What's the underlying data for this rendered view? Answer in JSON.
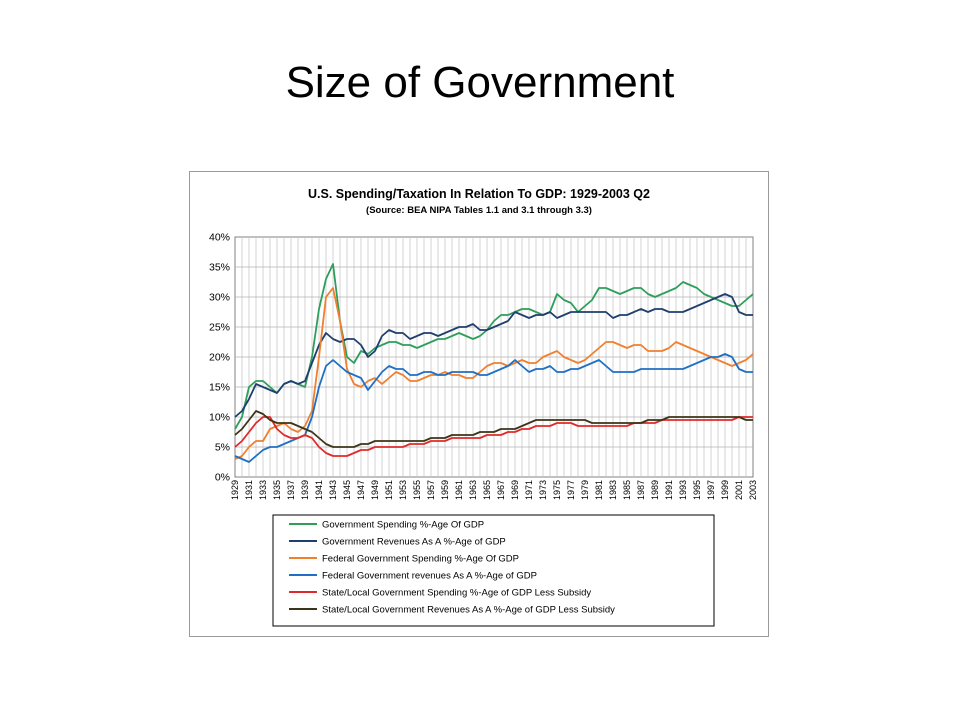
{
  "slide": {
    "title": "Size of Government"
  },
  "chart_data": {
    "type": "line",
    "title": "U.S. Spending/Taxation In Relation To GDP:  1929-2003 Q2",
    "subtitle": "(Source:  BEA NIPA Tables 1.1 and 3.1 through 3.3)",
    "xlabel": "",
    "ylabel": "",
    "ylim": [
      0,
      40
    ],
    "ytick_labels": [
      "0%",
      "5%",
      "10%",
      "15%",
      "20%",
      "25%",
      "30%",
      "35%",
      "40%"
    ],
    "xtick_labels": [
      "1929",
      "1931",
      "1933",
      "1935",
      "1937",
      "1939",
      "1941",
      "1943",
      "1945",
      "1947",
      "1949",
      "1951",
      "1953",
      "1955",
      "1957",
      "1959",
      "1961",
      "1963",
      "1965",
      "1967",
      "1969",
      "1971",
      "1973",
      "1975",
      "1977",
      "1979",
      "1981",
      "1983",
      "1985",
      "1987",
      "1989",
      "1991",
      "1993",
      "1995",
      "1997",
      "1999",
      "2001",
      "2003"
    ],
    "x": [
      1929,
      1930,
      1931,
      1932,
      1933,
      1934,
      1935,
      1936,
      1937,
      1938,
      1939,
      1940,
      1941,
      1942,
      1943,
      1944,
      1945,
      1946,
      1947,
      1948,
      1949,
      1950,
      1951,
      1952,
      1953,
      1954,
      1955,
      1956,
      1957,
      1958,
      1959,
      1960,
      1961,
      1962,
      1963,
      1964,
      1965,
      1966,
      1967,
      1968,
      1969,
      1970,
      1971,
      1972,
      1973,
      1974,
      1975,
      1976,
      1977,
      1978,
      1979,
      1980,
      1981,
      1982,
      1983,
      1984,
      1985,
      1986,
      1987,
      1988,
      1989,
      1990,
      1991,
      1992,
      1993,
      1994,
      1995,
      1996,
      1997,
      1998,
      1999,
      2000,
      2001,
      2002,
      2003
    ],
    "grid": true,
    "legend_position": "bottom",
    "series": [
      {
        "name": "Government Spending %-Age Of GDP",
        "color": "#2e9e5b",
        "values": [
          8,
          10,
          15,
          16,
          16,
          15,
          14,
          15.5,
          16,
          15.5,
          15,
          20,
          28,
          33,
          35.5,
          26,
          20,
          19,
          21,
          20.5,
          21.5,
          22,
          22.5,
          22.5,
          22,
          22,
          21.5,
          22,
          22.5,
          23,
          23,
          23.5,
          24,
          23.5,
          23,
          23.5,
          24.5,
          26,
          27,
          27,
          27.5,
          28,
          28,
          27.5,
          27,
          27.5,
          30.5,
          29.5,
          29,
          27.5,
          28.5,
          29.5,
          31.5,
          31.5,
          31,
          30.5,
          31,
          31.5,
          31.5,
          30.5,
          30,
          30.5,
          31,
          31.5,
          32.5,
          32,
          31.5,
          30.5,
          30,
          29.5,
          29,
          28.5,
          28.5,
          29.5,
          30.5
        ]
      },
      {
        "name": "Government Revenues As A %-Age of GDP",
        "color": "#1f3f6e",
        "values": [
          10,
          11,
          13,
          15.5,
          15,
          14.5,
          14,
          15.5,
          16,
          15.5,
          16,
          19,
          22,
          24,
          23,
          22.5,
          23,
          23,
          22,
          20,
          21,
          23.5,
          24.5,
          24,
          24,
          23,
          23.5,
          24,
          24,
          23.5,
          24,
          24.5,
          25,
          25,
          25.5,
          24.5,
          24.5,
          25,
          25.5,
          26,
          27.5,
          27,
          26.5,
          27,
          27,
          27.5,
          26.5,
          27,
          27.5,
          27.5,
          27.5,
          27.5,
          27.5,
          27.5,
          26.5,
          27,
          27,
          27.5,
          28,
          27.5,
          28,
          28,
          27.5,
          27.5,
          27.5,
          28,
          28.5,
          29,
          29.5,
          30,
          30.5,
          30,
          27.5,
          27,
          27
        ]
      },
      {
        "name": "Federal Government Spending %-Age Of GDP",
        "color": "#f07f2e",
        "values": [
          3,
          3.5,
          5,
          6,
          6,
          8,
          8.5,
          9,
          8,
          7.5,
          8.5,
          11,
          20,
          30,
          31.5,
          26,
          18,
          15.5,
          15,
          16,
          16.5,
          15.5,
          16.5,
          17.5,
          17,
          16,
          16,
          16.5,
          17,
          17,
          17.5,
          17,
          17,
          16.5,
          16.5,
          17.5,
          18.5,
          19,
          19,
          18.5,
          19,
          19.5,
          19,
          19,
          20,
          20.5,
          21,
          20,
          19.5,
          19,
          19.5,
          20.5,
          21.5,
          22.5,
          22.5,
          22,
          21.5,
          22,
          22,
          21,
          21,
          21,
          21.5,
          22.5,
          22,
          21.5,
          21,
          20.5,
          20,
          19.5,
          19,
          18.5,
          19,
          19.5,
          20.5
        ]
      },
      {
        "name": "Federal Government revenues As A %-Age of GDP",
        "color": "#1f6fc4",
        "values": [
          3.5,
          3,
          2.5,
          3.5,
          4.5,
          5,
          5,
          5.5,
          6,
          6.5,
          7,
          10,
          15,
          18.5,
          19.5,
          18.5,
          17.5,
          17,
          16.5,
          14.5,
          16,
          17.5,
          18.5,
          18,
          18,
          17,
          17,
          17.5,
          17.5,
          17,
          17,
          17.5,
          17.5,
          17.5,
          17.5,
          17,
          17,
          17.5,
          18,
          18.5,
          19.5,
          18.5,
          17.5,
          18,
          18,
          18.5,
          17.5,
          17.5,
          18,
          18,
          18.5,
          19,
          19.5,
          18.5,
          17.5,
          17.5,
          17.5,
          17.5,
          18,
          18,
          18,
          18,
          18,
          18,
          18,
          18.5,
          19,
          19.5,
          20,
          20,
          20.5,
          20,
          18,
          17.5,
          17.5
        ]
      },
      {
        "name": "State/Local Government Spending %-Age of GDP Less Subsidy",
        "color": "#e02a2a",
        "values": [
          5,
          6,
          7.5,
          9,
          10,
          10,
          8,
          7,
          6.5,
          6.5,
          7,
          6.5,
          5,
          4,
          3.5,
          3.5,
          3.5,
          4,
          4.5,
          4.5,
          5,
          5,
          5,
          5,
          5,
          5.5,
          5.5,
          5.5,
          6,
          6,
          6,
          6.5,
          6.5,
          6.5,
          6.5,
          6.5,
          7,
          7,
          7,
          7.5,
          7.5,
          8,
          8,
          8.5,
          8.5,
          8.5,
          9,
          9,
          9,
          8.5,
          8.5,
          8.5,
          8.5,
          8.5,
          8.5,
          8.5,
          8.5,
          9,
          9,
          9,
          9,
          9.5,
          9.5,
          9.5,
          9.5,
          9.5,
          9.5,
          9.5,
          9.5,
          9.5,
          9.5,
          9.5,
          10,
          10,
          10
        ]
      },
      {
        "name": "State/Local Government Revenues As A %-Age of GDP Less Subsidy",
        "color": "#3d3417",
        "values": [
          7,
          8,
          9.5,
          11,
          10.5,
          9.5,
          9,
          9,
          9,
          8.5,
          8,
          7.5,
          6.5,
          5.5,
          5,
          5,
          5,
          5,
          5.5,
          5.5,
          6,
          6,
          6,
          6,
          6,
          6,
          6,
          6,
          6.5,
          6.5,
          6.5,
          7,
          7,
          7,
          7,
          7.5,
          7.5,
          7.5,
          8,
          8,
          8,
          8.5,
          9,
          9.5,
          9.5,
          9.5,
          9.5,
          9.5,
          9.5,
          9.5,
          9.5,
          9,
          9,
          9,
          9,
          9,
          9,
          9,
          9,
          9.5,
          9.5,
          9.5,
          10,
          10,
          10,
          10,
          10,
          10,
          10,
          10,
          10,
          10,
          10,
          9.5,
          9.5
        ]
      }
    ]
  }
}
